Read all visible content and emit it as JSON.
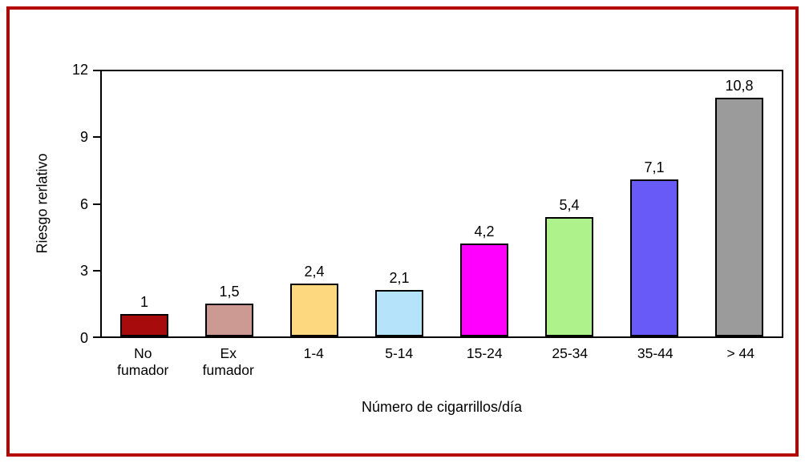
{
  "chart_data": {
    "type": "bar",
    "title": "",
    "ylabel": "Riesgo rerlativo",
    "xlabel": "Número de cigarrillos/día",
    "ylim": [
      0,
      12
    ],
    "yticks": [
      0,
      3,
      6,
      9,
      12
    ],
    "grid": false,
    "legend_position": "none",
    "categories": [
      "No\nfumador",
      "Ex\nfumador",
      "1-4",
      "5-14",
      "15-24",
      "25-34",
      "35-44",
      "> 44"
    ],
    "values": [
      1,
      1.5,
      2.4,
      2.1,
      4.2,
      5.4,
      7.1,
      10.8
    ],
    "value_labels": [
      "1",
      "1,5",
      "2,4",
      "2,1",
      "4,2",
      "5,4",
      "7,1",
      "10,8"
    ],
    "bar_colors": [
      "#a80b0b",
      "#cc9a92",
      "#fdd87e",
      "#b5e4fa",
      "#ff00ff",
      "#aef28b",
      "#685af7",
      "#9b9b9b"
    ],
    "bar_border_color": "#000000",
    "axis_color": "#000000",
    "frame_border_color": "#b40404"
  }
}
